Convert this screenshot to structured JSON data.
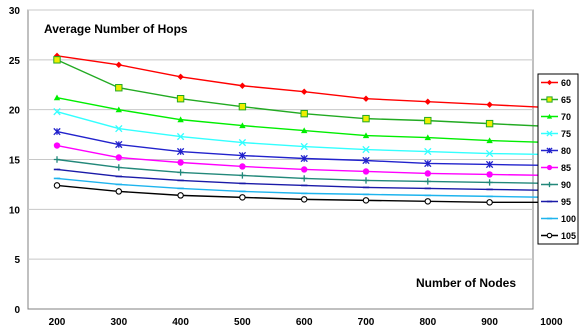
{
  "chart_data": {
    "type": "line",
    "title": "",
    "in_plot_labels": {
      "y_title": "Average Number of Hops",
      "x_title": "Number of Nodes"
    },
    "x": [
      200,
      300,
      400,
      500,
      600,
      700,
      800,
      900,
      1000
    ],
    "ylim": [
      0,
      30
    ],
    "yticks": [
      0,
      5,
      10,
      15,
      20,
      25,
      30
    ],
    "grid": "horizontal",
    "legend_position": "right",
    "series": [
      {
        "name": "60",
        "color": "#ff0000",
        "marker": "diamond",
        "values": [
          25.4,
          24.5,
          23.3,
          22.4,
          21.8,
          21.1,
          20.8,
          20.5,
          20.2
        ]
      },
      {
        "name": "65",
        "color": "#22aa22",
        "marker": "square",
        "values": [
          25.0,
          22.2,
          21.1,
          20.3,
          19.6,
          19.1,
          18.9,
          18.6,
          18.3
        ]
      },
      {
        "name": "70",
        "color": "#00ee00",
        "marker": "triangle",
        "values": [
          21.2,
          20.0,
          19.0,
          18.4,
          17.9,
          17.4,
          17.2,
          16.9,
          16.7
        ]
      },
      {
        "name": "75",
        "color": "#33ffff",
        "marker": "x",
        "values": [
          19.8,
          18.1,
          17.3,
          16.7,
          16.3,
          16.0,
          15.8,
          15.6,
          15.5
        ]
      },
      {
        "name": "80",
        "color": "#2222cc",
        "marker": "star",
        "values": [
          17.8,
          16.5,
          15.8,
          15.4,
          15.1,
          14.9,
          14.6,
          14.5,
          14.4
        ]
      },
      {
        "name": "85",
        "color": "#ff00ff",
        "marker": "circle",
        "values": [
          16.4,
          15.2,
          14.7,
          14.3,
          14.0,
          13.8,
          13.6,
          13.5,
          13.4
        ]
      },
      {
        "name": "90",
        "color": "#22887a",
        "marker": "plus",
        "values": [
          15.0,
          14.2,
          13.7,
          13.4,
          13.1,
          12.9,
          12.8,
          12.7,
          12.6
        ]
      },
      {
        "name": "95",
        "color": "#1a1aa8",
        "marker": "dash",
        "values": [
          14.0,
          13.3,
          12.9,
          12.6,
          12.4,
          12.2,
          12.1,
          12.0,
          11.9
        ]
      },
      {
        "name": "100",
        "color": "#1eb4ee",
        "marker": "dash",
        "values": [
          13.1,
          12.5,
          12.1,
          11.8,
          11.6,
          11.5,
          11.4,
          11.3,
          11.2
        ]
      },
      {
        "name": "105",
        "color": "#000000",
        "marker": "open-circle",
        "values": [
          12.4,
          11.8,
          11.4,
          11.2,
          11.0,
          10.9,
          10.8,
          10.7,
          10.7
        ]
      }
    ]
  }
}
